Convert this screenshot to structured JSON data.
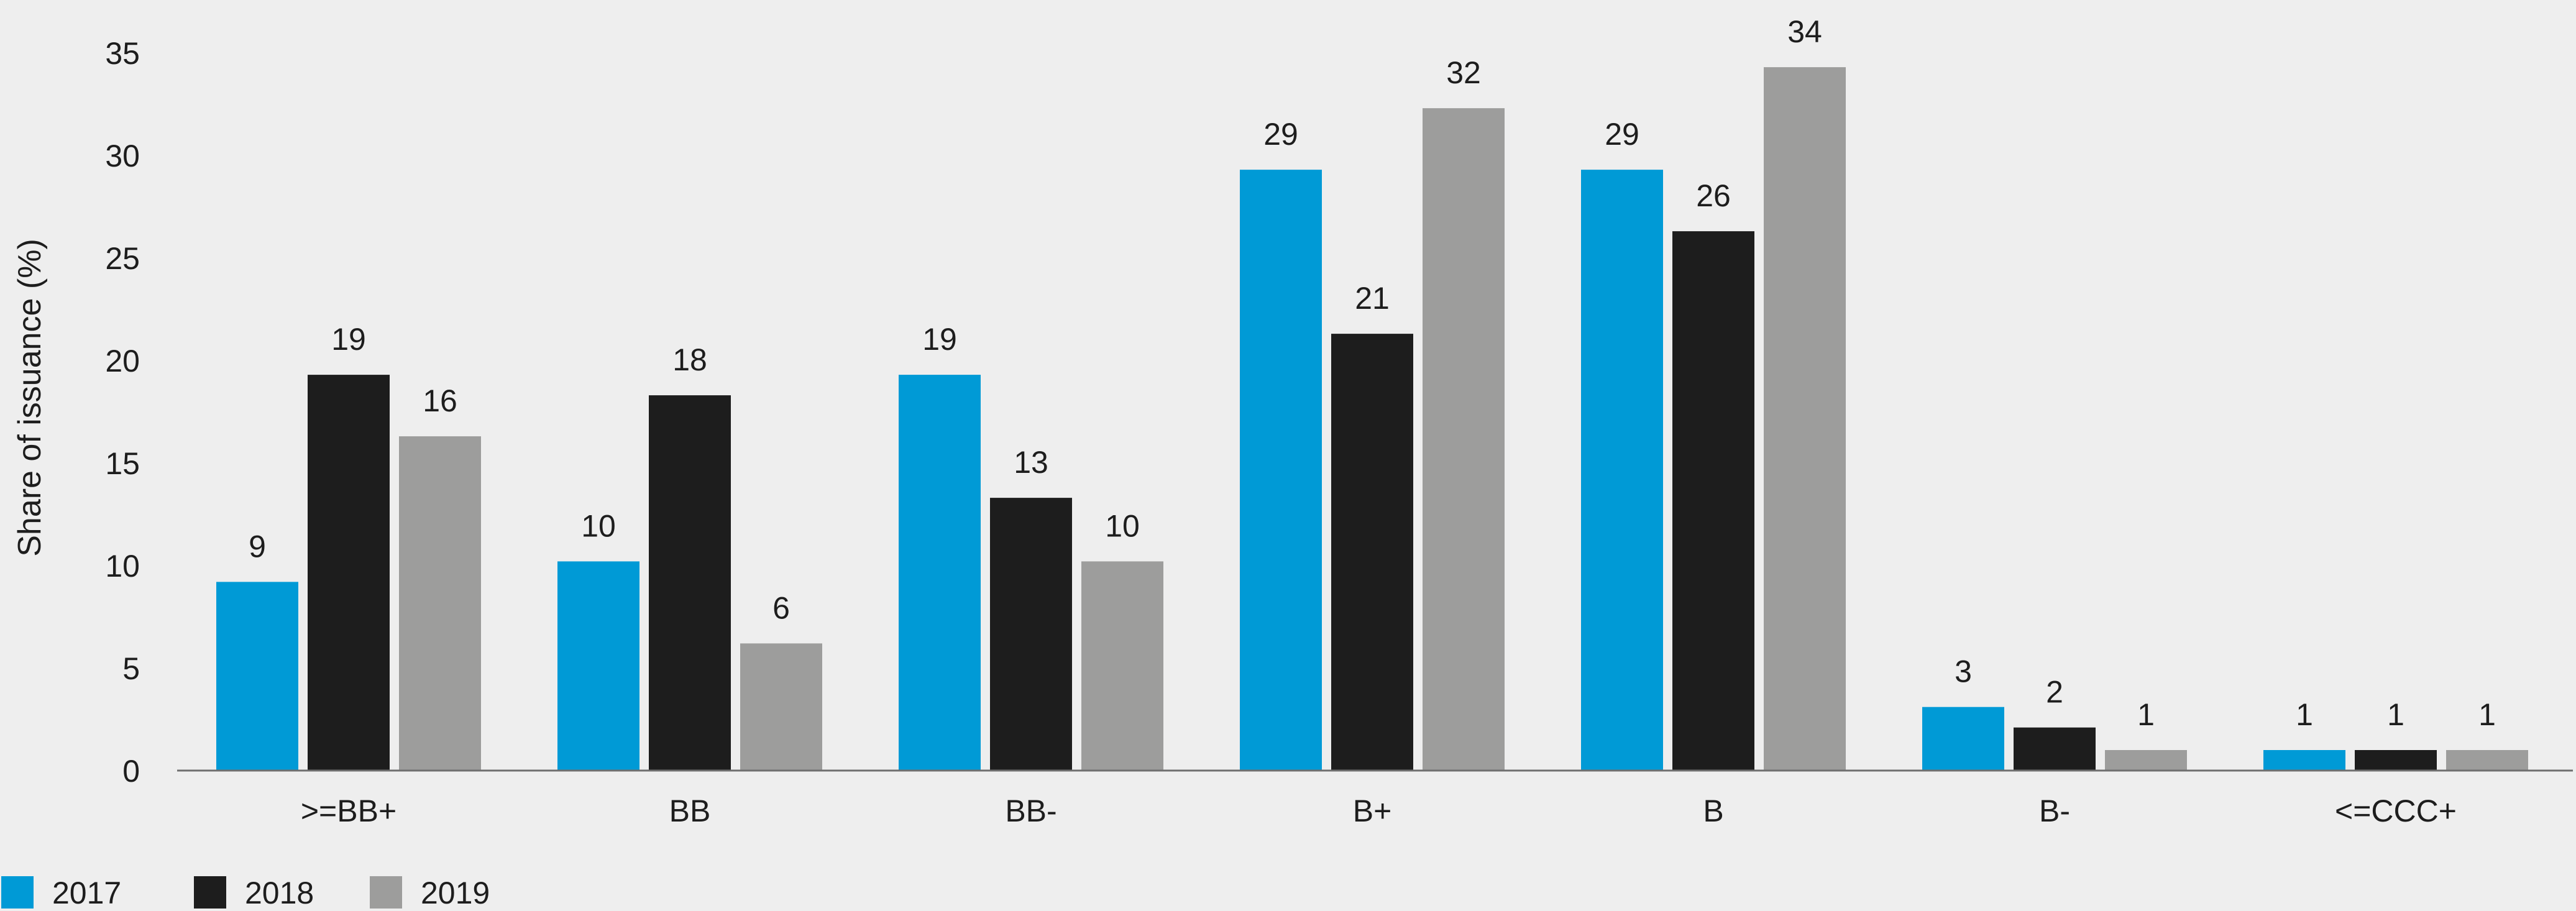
{
  "chart_data": {
    "type": "bar",
    "title": "",
    "xlabel": "",
    "ylabel": "Share of issuance (%)",
    "ylim": [
      0,
      35
    ],
    "yticks": [
      0,
      5,
      10,
      15,
      20,
      25,
      30,
      35
    ],
    "grid": false,
    "legend_position": "bottom-left",
    "categories": [
      ">=BB+",
      "BB",
      "BB-",
      "B+",
      "B",
      "B-",
      "<=CCC+"
    ],
    "series": [
      {
        "name": "2017",
        "color": "#009ad6",
        "values": [
          9.2,
          10.2,
          19.3,
          29.3,
          29.3,
          3.1,
          1.0
        ],
        "labels": [
          "9",
          "10",
          "19",
          "29",
          "29",
          "3",
          "1"
        ]
      },
      {
        "name": "2018",
        "color": "#1d1d1d",
        "values": [
          19.3,
          18.3,
          13.3,
          21.3,
          26.3,
          2.1,
          1.0
        ],
        "labels": [
          "19",
          "18",
          "13",
          "21",
          "26",
          "2",
          "1"
        ]
      },
      {
        "name": "2019",
        "color": "#9d9d9c",
        "values": [
          16.3,
          6.2,
          10.2,
          32.3,
          34.3,
          1.0,
          1.0
        ],
        "labels": [
          "16",
          "6",
          "10",
          "32",
          "34",
          "1",
          "1"
        ]
      }
    ]
  }
}
